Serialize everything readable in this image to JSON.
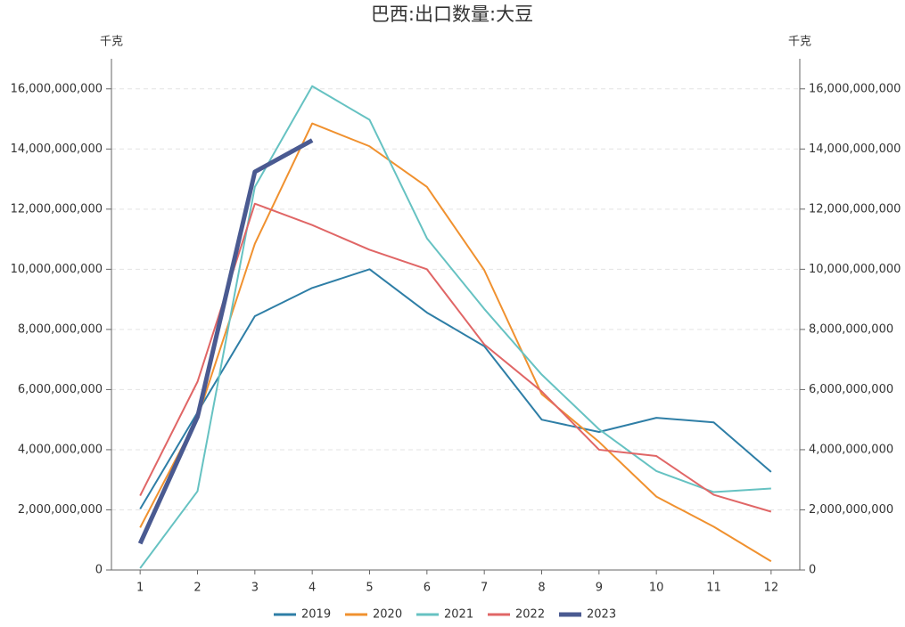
{
  "chart_data": {
    "type": "line",
    "title": "巴西:出口数量:大豆",
    "ylabel": "千克",
    "y2label": "千克",
    "categories": [
      "1",
      "2",
      "3",
      "4",
      "5",
      "6",
      "7",
      "8",
      "9",
      "10",
      "11",
      "12"
    ],
    "series": [
      {
        "name": "2019",
        "color": "#2e7ea6",
        "values": [
          2030000000,
          5240000000,
          8440000000,
          9380000000,
          10000000000,
          8560000000,
          7440000000,
          5000000000,
          4590000000,
          5060000000,
          4910000000,
          3260000000
        ]
      },
      {
        "name": "2020",
        "color": "#f0912f",
        "values": [
          1410000000,
          5060000000,
          10850000000,
          14850000000,
          14090000000,
          12740000000,
          9970000000,
          5850000000,
          4260000000,
          2440000000,
          1440000000,
          290000000
        ]
      },
      {
        "name": "2021",
        "color": "#66c2c2",
        "values": [
          60000000,
          2620000000,
          12740000000,
          16090000000,
          14970000000,
          11030000000,
          8680000000,
          6500000000,
          4680000000,
          3290000000,
          2590000000,
          2710000000
        ]
      },
      {
        "name": "2022",
        "color": "#e06666",
        "values": [
          2470000000,
          6260000000,
          12180000000,
          11470000000,
          10650000000,
          10000000000,
          7500000000,
          5940000000,
          4000000000,
          3790000000,
          2500000000,
          1940000000
        ]
      },
      {
        "name": "2023",
        "color": "#4a5a91",
        "values": [
          880000000,
          5090000000,
          13240000000,
          14290000000,
          null,
          null,
          null,
          null,
          null,
          null,
          null,
          null
        ]
      }
    ],
    "ylim": [
      0,
      17000000000
    ],
    "yticks": [
      0,
      {
        "value": 2000000000,
        "label": "2,000,000,000"
      },
      {
        "value": 4000000000,
        "label": "4,000,000,000"
      },
      {
        "value": 6000000000,
        "label": "6,000,000,000"
      },
      {
        "value": 8000000000,
        "label": "8,000,000,000"
      },
      {
        "value": 10000000000,
        "label": "10,000,000,000"
      },
      {
        "value": 12000000000,
        "label": "12,000,000,000"
      },
      {
        "value": 14000000000,
        "label": "14,000,000,000"
      },
      {
        "value": 16000000000,
        "label": "16,000,000,000"
      }
    ],
    "y2lim": [
      0,
      17000000000
    ],
    "y2ticks": [
      0,
      {
        "value": 2000000000,
        "label": "2,000,000,000"
      },
      {
        "value": 4000000000,
        "label": "4,000,000,000"
      },
      {
        "value": 6000000000,
        "label": "6,000,000,000"
      },
      {
        "value": 8000000000,
        "label": "8,000,000,000"
      },
      {
        "value": 10000000000,
        "label": "10,000,000,000"
      },
      {
        "value": 12000000000,
        "label": "12,000,000,000"
      },
      {
        "value": 14000000000,
        "label": "14,000,000,000"
      },
      {
        "value": 16000000000,
        "label": "16,000,000,000"
      }
    ],
    "grid": true,
    "legend": "bottom"
  }
}
